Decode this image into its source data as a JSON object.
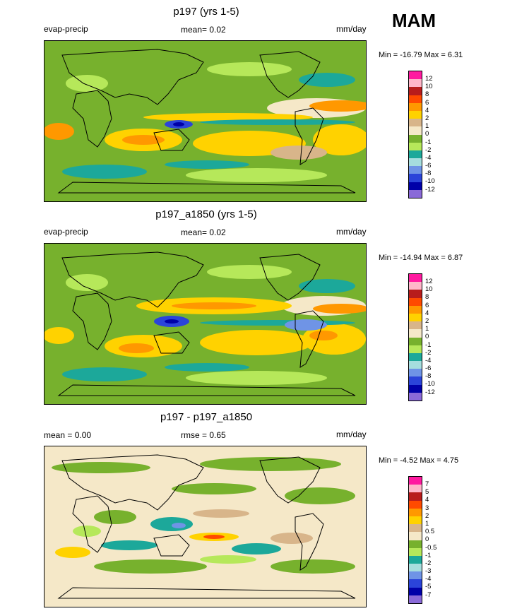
{
  "season": "MAM",
  "panels": [
    {
      "title": "p197 (yrs 1-5)",
      "left_label": "evap-precip",
      "center_label": "mean=  0.02",
      "units": "mm/day",
      "minmax": "Min = -16.79 Max =  6.31",
      "colorbar_labels": [
        "12",
        "10",
        "8",
        "6",
        "4",
        "2",
        "1",
        "0",
        "-1",
        "-2",
        "-4",
        "-6",
        "-8",
        "-10",
        "-12"
      ],
      "colorbar_colors": [
        "#ff1aa0",
        "#ffb6c9",
        "#b81c1c",
        "#ff4a00",
        "#ff9800",
        "#ffd200",
        "#d8b58a",
        "#f5e8c8",
        "#77b12d",
        "#b6e85a",
        "#1ca89a",
        "#a6dede",
        "#6f94e6",
        "#2b44d9",
        "#0000a8",
        "#8a6ad8"
      ]
    },
    {
      "title": "p197_a1850 (yrs 1-5)",
      "left_label": "evap-precip",
      "center_label": "mean=  0.02",
      "units": "mm/day",
      "minmax": "Min = -14.94 Max =  6.87",
      "colorbar_labels": [
        "12",
        "10",
        "8",
        "6",
        "4",
        "2",
        "1",
        "0",
        "-1",
        "-2",
        "-4",
        "-6",
        "-8",
        "-10",
        "-12"
      ],
      "colorbar_colors": [
        "#ff1aa0",
        "#ffb6c9",
        "#b81c1c",
        "#ff4a00",
        "#ff9800",
        "#ffd200",
        "#d8b58a",
        "#f5e8c8",
        "#77b12d",
        "#b6e85a",
        "#1ca89a",
        "#a6dede",
        "#6f94e6",
        "#2b44d9",
        "#0000a8",
        "#8a6ad8"
      ]
    },
    {
      "title": "p197 - p197_a1850",
      "left_label": "mean =   0.00",
      "center_label": "rmse =   0.65",
      "units": "mm/day",
      "minmax": "Min =  -4.52 Max =  4.75",
      "colorbar_labels": [
        "7",
        "5",
        "4",
        "3",
        "2",
        "1",
        "0.5",
        "0",
        "-0.5",
        "-1",
        "-2",
        "-3",
        "-4",
        "-5",
        "-7"
      ],
      "colorbar_colors": [
        "#ff1aa0",
        "#ffb6c9",
        "#b81c1c",
        "#ff4a00",
        "#ff9800",
        "#ffd200",
        "#d8b58a",
        "#f5e8c8",
        "#77b12d",
        "#b6e85a",
        "#1ca89a",
        "#a6dede",
        "#6f94e6",
        "#2b44d9",
        "#0000a8",
        "#8a6ad8"
      ]
    }
  ]
}
